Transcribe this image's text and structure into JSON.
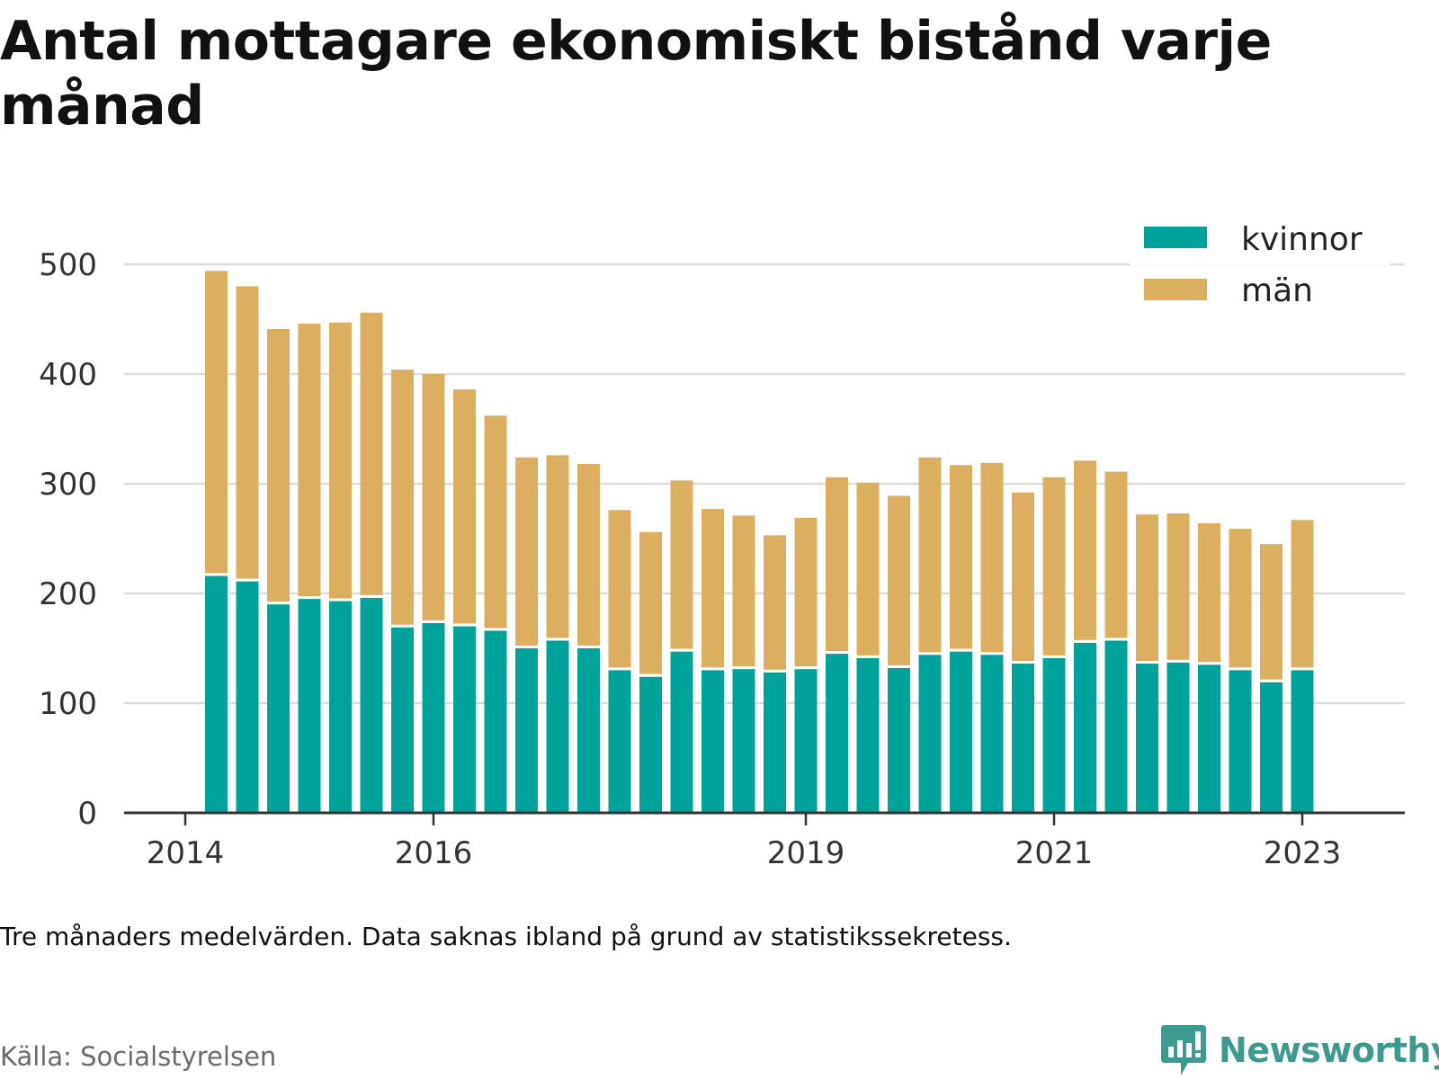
{
  "title": "Antal mottagare ekonomiskt bistånd varje månad",
  "note": "Tre månaders medelvärden. Data saknas ibland på grund av statistikssekretess.",
  "source": "Källa: Socialstyrelsen",
  "brand": {
    "name": "Newsworthy",
    "icon": "newsworthy-logo-icon",
    "color": "#3d9a8f"
  },
  "colors": {
    "kvinnor": "#00a39a",
    "man": "#dbaf5f",
    "grid": "#dcdcdc",
    "axis": "#333333"
  },
  "chart_data": {
    "type": "bar",
    "stacked": true,
    "title": "Antal mottagare ekonomiskt bistånd varje månad",
    "xlabel": "",
    "ylabel": "",
    "ylim": [
      0,
      500
    ],
    "yticks": [
      0,
      100,
      200,
      300,
      400,
      500
    ],
    "grid": true,
    "legend_position": "top-right",
    "xtick_labels": [
      "2014",
      "2016",
      "2019",
      "2021",
      "2023"
    ],
    "xticks": [
      "2014-01",
      "2016-01",
      "2019-01",
      "2021-01",
      "2023-01"
    ],
    "x": [
      "2014-04",
      "2014-07",
      "2014-10",
      "2015-01",
      "2015-04",
      "2015-07",
      "2015-10",
      "2016-01",
      "2016-04",
      "2016-07",
      "2016-10",
      "2017-01",
      "2017-04",
      "2017-07",
      "2017-10",
      "2018-01",
      "2018-04",
      "2018-07",
      "2018-10",
      "2019-01",
      "2019-04",
      "2019-07",
      "2019-10",
      "2020-01",
      "2020-04",
      "2020-07",
      "2020-10",
      "2021-01",
      "2021-04",
      "2021-07",
      "2021-10",
      "2022-01",
      "2022-04",
      "2022-07",
      "2022-10",
      "2023-01"
    ],
    "series": [
      {
        "name": "kvinnor",
        "values": [
          216,
          211,
          190,
          195,
          193,
          196,
          169,
          173,
          170,
          166,
          150,
          157,
          150,
          130,
          124,
          147,
          130,
          131,
          128,
          131,
          145,
          141,
          132,
          144,
          147,
          144,
          136,
          141,
          155,
          157,
          136,
          137,
          135,
          130,
          119,
          130
        ]
      },
      {
        "name": "män",
        "values": [
          278,
          269,
          251,
          251,
          254,
          260,
          235,
          227,
          216,
          196,
          174,
          169,
          168,
          146,
          132,
          156,
          147,
          140,
          125,
          138,
          161,
          160,
          157,
          180,
          170,
          175,
          156,
          165,
          166,
          154,
          136,
          136,
          129,
          129,
          126,
          137
        ]
      }
    ]
  }
}
